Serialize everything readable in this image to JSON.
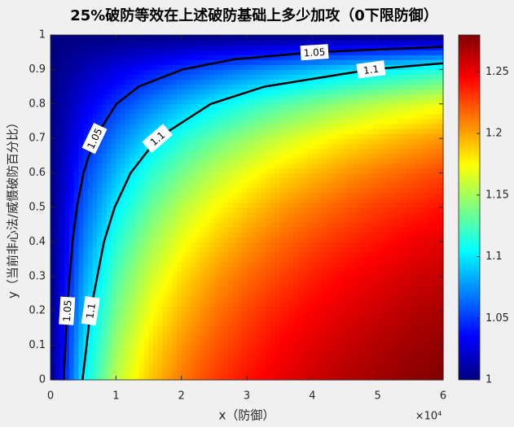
{
  "chart_data": {
    "type": "heatmap",
    "title": "25%破防等效在上述破防基础上多少加攻（0下限防御）",
    "x_label": "x（防御）",
    "y_label": "y（当前非心法/威慑破防百分比）",
    "x_multiplier": "×10⁴",
    "colormap": "jet",
    "x": [
      0,
      5000,
      10000,
      15000,
      20000,
      25000,
      30000,
      35000,
      40000,
      45000,
      50000,
      55000,
      60000
    ],
    "y": [
      0,
      0.1,
      0.2,
      0.3,
      0.4,
      0.5,
      0.6,
      0.7,
      0.8,
      0.9,
      1
    ],
    "z": [
      [
        1,
        1.101,
        1.156,
        1.189,
        1.212,
        1.229,
        1.241,
        1.251,
        1.259,
        1.266,
        1.271,
        1.276,
        1.28
      ],
      [
        1,
        1.094,
        1.147,
        1.181,
        1.204,
        1.221,
        1.234,
        1.245,
        1.253,
        1.26,
        1.266,
        1.271,
        1.275
      ],
      [
        1,
        1.086,
        1.137,
        1.171,
        1.194,
        1.212,
        1.226,
        1.237,
        1.246,
        1.253,
        1.259,
        1.265,
        1.269
      ],
      [
        1,
        1.078,
        1.127,
        1.16,
        1.184,
        1.202,
        1.216,
        1.227,
        1.237,
        1.245,
        1.251,
        1.257,
        1.262
      ],
      [
        1,
        1.069,
        1.115,
        1.147,
        1.171,
        1.189,
        1.204,
        1.216,
        1.226,
        1.234,
        1.241,
        1.248,
        1.253
      ],
      [
        1,
        1.06,
        1.101,
        1.132,
        1.156,
        1.174,
        1.189,
        1.202,
        1.212,
        1.221,
        1.229,
        1.235,
        1.241
      ],
      [
        1,
        1.05,
        1.086,
        1.115,
        1.137,
        1.156,
        1.171,
        1.184,
        1.194,
        1.204,
        1.212,
        1.219,
        1.226
      ],
      [
        1,
        1.039,
        1.069,
        1.094,
        1.115,
        1.132,
        1.147,
        1.16,
        1.171,
        1.181,
        1.189,
        1.197,
        1.204
      ],
      [
        1,
        1.027,
        1.05,
        1.069,
        1.086,
        1.101,
        1.115,
        1.127,
        1.137,
        1.147,
        1.156,
        1.163,
        1.171
      ],
      [
        1,
        1.014,
        1.027,
        1.039,
        1.05,
        1.06,
        1.069,
        1.078,
        1.086,
        1.094,
        1.101,
        1.108,
        1.115
      ],
      [
        1,
        1,
        1,
        1,
        1,
        1,
        1,
        1,
        1,
        1,
        1,
        1,
        1
      ]
    ],
    "contours": [
      {
        "level": 1.05,
        "color": "#000000",
        "x": [
          2017,
          2521,
          3362,
          4034,
          5043,
          6723,
          10085,
          13447,
          20170,
          28233,
          40340,
          60000
        ],
        "y": [
          0,
          0.2,
          0.4,
          0.5,
          0.6,
          0.7,
          0.8,
          0.85,
          0.9,
          0.93,
          0.95,
          0.966
        ]
      },
      {
        "level": 1.1,
        "color": "#000000",
        "x": [
          4898,
          6123,
          8163,
          9796,
          12245,
          16327,
          24490,
          32653,
          48980,
          60000
        ],
        "y": [
          0,
          0.2,
          0.4,
          0.5,
          0.6,
          0.7,
          0.8,
          0.85,
          0.9,
          0.918
        ]
      }
    ],
    "xlim": [
      0,
      60000
    ],
    "xticks": [
      {
        "value": 0,
        "label": "0"
      },
      {
        "value": 10000,
        "label": "1"
      },
      {
        "value": 20000,
        "label": "2"
      },
      {
        "value": 30000,
        "label": "3"
      },
      {
        "value": 40000,
        "label": "4"
      },
      {
        "value": 50000,
        "label": "5"
      },
      {
        "value": 60000,
        "label": "6"
      }
    ],
    "ylim": [
      0,
      1
    ],
    "yticks": [
      0,
      0.1,
      0.2,
      0.3,
      0.4,
      0.5,
      0.6,
      0.7,
      0.8,
      0.9,
      1
    ],
    "clim": [
      1,
      1.28
    ],
    "cticks": [
      1,
      1.05,
      1.1,
      1.15,
      1.2,
      1.25
    ]
  }
}
